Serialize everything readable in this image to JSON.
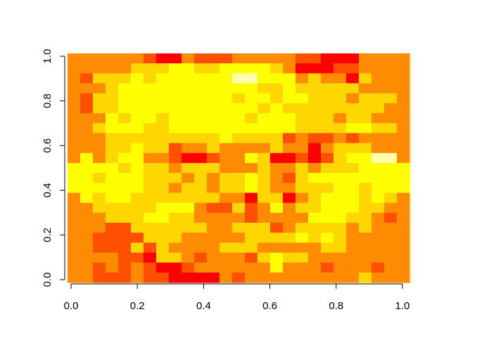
{
  "chart_data": {
    "type": "heatmap",
    "title": "",
    "xlabel": "",
    "ylabel": "",
    "xlim": [
      0,
      1
    ],
    "ylim": [
      0,
      1
    ],
    "x_ticks": [
      "0.0",
      "0.2",
      "0.4",
      "0.6",
      "0.8",
      "1.0"
    ],
    "y_ticks": [
      "0.0",
      "0.2",
      "0.4",
      "0.6",
      "0.8",
      "1.0"
    ],
    "nx": 27,
    "ny": 23,
    "palette": [
      "#ff0000",
      "#ff5000",
      "#ff8c00",
      "#ffd700",
      "#ffff00",
      "#ffffb0",
      "#ffffff"
    ],
    "legend": "none",
    "grid": false,
    "values_rows_top_to_bottom": [
      "222222100211122222110002222",
      "222223334433444432000112222",
      "213334344444455444232203222",
      "222344444444444334333332222",
      "213344444444434434433323332",
      "213344444444444343333333322",
      "222434434444443444333233222",
      "223444334444444444333344332",
      "222333333333433331211212222",
      "222334331223222232202333222",
      "242344221001224300101344552",
      "444434332333222322323334444",
      "443444333232334321344444444",
      "444444332332334322333443444",
      "243443333333220330234443432",
      "223333344421131242334443322",
      "222333443322221222244433212",
      "222113333332233312333323222",
      "221111333222223333434322222",
      "221113132222333222223322222",
      "222211033212221343322222222",
      "221212100122222242221222122",
      "221112110000212222222223222"
    ]
  }
}
